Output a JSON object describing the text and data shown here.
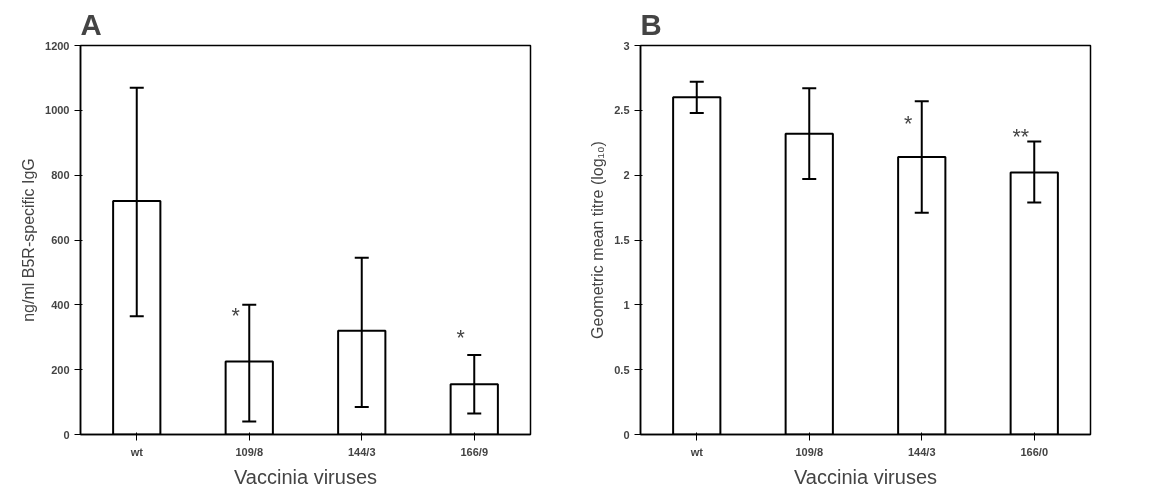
{
  "chart_data": [
    {
      "type": "bar",
      "title": "A",
      "xlabel": "Vaccinia viruses",
      "ylabel": "ng/ml B5R-specific IgG",
      "categories": [
        "wt",
        "109/8",
        "144/3",
        "166/9"
      ],
      "series": [
        {
          "color": "#ffffff",
          "values": [
            720,
            225,
            320,
            155
          ],
          "errors": [
            [
              365,
              1070
            ],
            [
              40,
              400
            ],
            [
              85,
              545
            ],
            [
              65,
              245
            ]
          ]
        }
      ],
      "ylim": [
        0,
        1200
      ],
      "yticks": [
        0,
        200,
        400,
        600,
        800,
        1000,
        1200
      ],
      "grid": false,
      "annotations": [
        {
          "text": "*",
          "x": "109/8",
          "y": 330
        },
        {
          "text": "*",
          "x": "166/9",
          "y": 260
        }
      ]
    },
    {
      "type": "bar",
      "title": "B",
      "xlabel": "Vaccinia viruses",
      "ylabel": "Geometric mean titre (log₁₀)",
      "categories": [
        "wt",
        "109/8",
        "144/3",
        "166/0"
      ],
      "series": [
        {
          "color": "#ffffff",
          "values": [
            2.6,
            2.32,
            2.14,
            2.02
          ],
          "errors": [
            [
              2.48,
              2.72
            ],
            [
              1.97,
              2.67
            ],
            [
              1.71,
              2.57
            ],
            [
              1.79,
              2.26
            ]
          ]
        }
      ],
      "ylim": [
        0,
        3
      ],
      "yticks": [
        0,
        0.5,
        1,
        1.5,
        2,
        2.5,
        3
      ],
      "grid": false,
      "annotations": [
        {
          "text": "*",
          "x": "144/3",
          "y": 2.3
        },
        {
          "text": "**",
          "x": "166/0",
          "y": 2.2
        }
      ]
    }
  ]
}
